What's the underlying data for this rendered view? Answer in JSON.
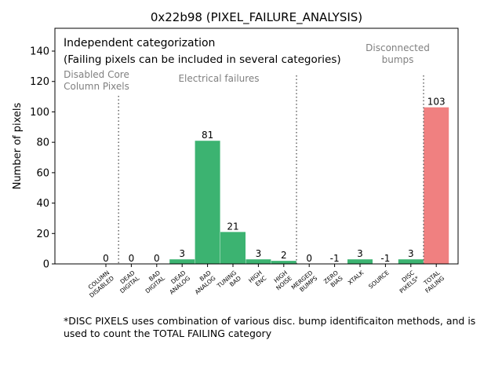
{
  "chart_data": {
    "type": "bar",
    "title": "0x22b98 (PIXEL_FAILURE_ANALYSIS)",
    "xlabel": "",
    "ylabel": "Number of pixels",
    "ylim": [
      0,
      155
    ],
    "yticks": [
      0,
      20,
      40,
      60,
      80,
      100,
      120,
      140
    ],
    "grid": false,
    "categories": [
      [
        "COLUMN",
        "DISABLED"
      ],
      [
        "DEAD",
        "DIGITAL"
      ],
      [
        "BAD",
        "DIGITAL"
      ],
      [
        "DEAD",
        "ANALOG"
      ],
      [
        "BAD",
        "ANALOG"
      ],
      [
        "TUNING",
        "BAD"
      ],
      [
        "HIGH",
        "ENC"
      ],
      [
        "HIGH",
        "NOISE"
      ],
      [
        "MERGED",
        "BUMPS"
      ],
      [
        "ZERO",
        "BIAS"
      ],
      [
        "XTALK"
      ],
      [
        "SOURCE"
      ],
      [
        "DISC",
        "PIXELS*"
      ],
      [
        "TOTAL",
        "FAILING"
      ]
    ],
    "values": [
      0,
      0,
      0,
      3,
      81,
      21,
      3,
      2,
      0,
      -1,
      3,
      -1,
      3,
      103
    ],
    "value_labels": [
      "0",
      "0",
      "0",
      "3",
      "81",
      "21",
      "3",
      "2",
      "0",
      "-1",
      "3",
      "-1",
      "3",
      "103"
    ],
    "bar_colors": [
      "#3cb371",
      "#3cb371",
      "#3cb371",
      "#3cb371",
      "#3cb371",
      "#3cb371",
      "#3cb371",
      "#3cb371",
      "#3cb371",
      "#3cb371",
      "#3cb371",
      "#3cb371",
      "#3cb371",
      "#f08080"
    ],
    "separators_after_index": [
      0,
      7,
      12
    ],
    "annotations": {
      "info_line1": "Independent categorization",
      "info_line2": "(Failing pixels can be included in several categories)",
      "group_core": [
        "Disabled Core",
        "Column Pixels"
      ],
      "group_electrical": "Electrical failures",
      "group_bumps": [
        "Disconnected",
        "bumps"
      ]
    },
    "footnote": "*DISC PIXELS uses combination of various disc. bump identificaiton methods, and is used to count the TOTAL FAILING category"
  }
}
